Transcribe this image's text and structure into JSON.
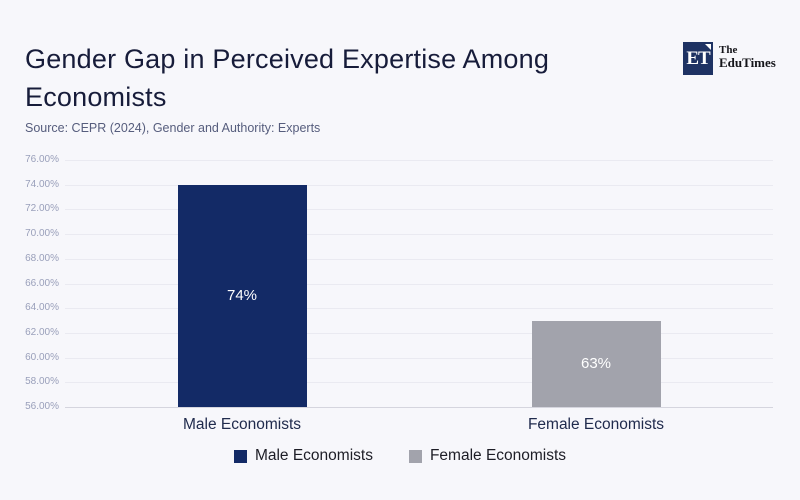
{
  "page": {
    "background_color": "#f7f7fb",
    "title": "Gender Gap in Perceived Expertise Among Economists",
    "source": "Source: CEPR (2024), Gender and Authority: Experts"
  },
  "logo": {
    "monogram": "ET",
    "brand_line1": "The",
    "brand_line2": "EduTimes",
    "square_color": "#1e3263"
  },
  "chart_data": {
    "type": "bar",
    "title": "Gender Gap in Perceived Expertise Among Economists",
    "xlabel": "",
    "ylabel": "",
    "categories": [
      "Male Economists",
      "Female Economists"
    ],
    "values": [
      74,
      63
    ],
    "bar_labels": [
      "74%",
      "63%"
    ],
    "bar_colors": [
      "#132a66",
      "#a2a3ac"
    ],
    "ylim": [
      56,
      76
    ],
    "ytick_labels": [
      "76.00%",
      "74.00%",
      "72.00%",
      "70.00%",
      "68.00%",
      "66.00%",
      "64.00%",
      "62.00%",
      "60.00%",
      "58.00%",
      "56.00%"
    ],
    "grid": "horizontal",
    "legend": [
      "Male Economists",
      "Female Economists"
    ],
    "legend_position": "bottom"
  }
}
